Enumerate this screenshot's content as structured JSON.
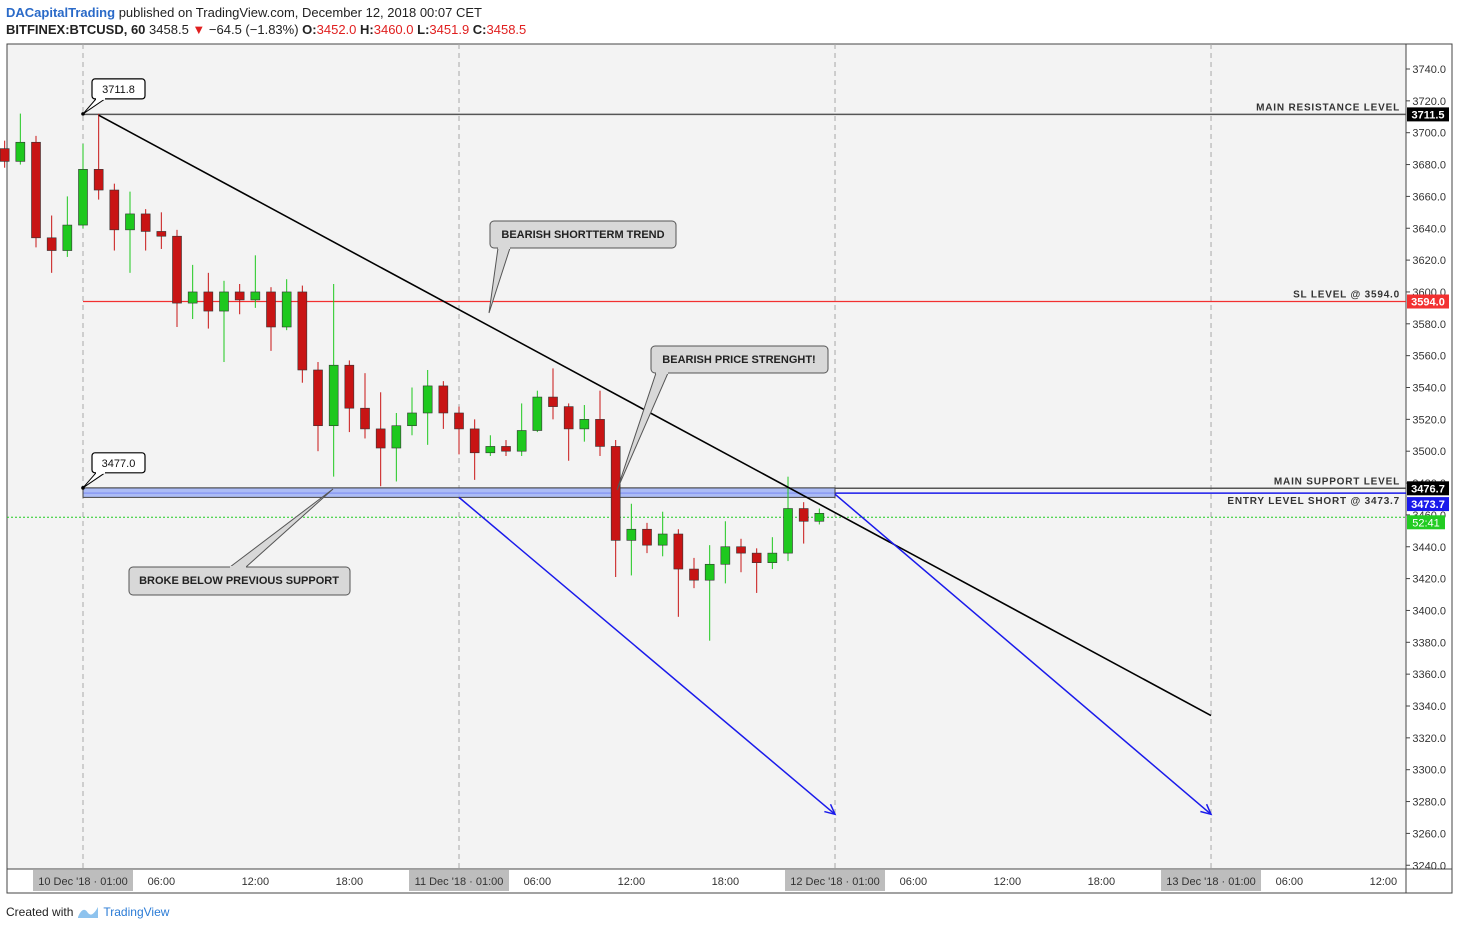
{
  "header": {
    "author": "DACapitalTrading",
    "published": "published on TradingView.com, December 12, 2018 00:07 CET",
    "symbol": "BITFINEX:BTCUSD, 60",
    "last": "3458.5",
    "change": "−64.5 (−1.83%)",
    "o_label": "O:",
    "o": "3452.0",
    "h_label": "H:",
    "h": "3460.0",
    "l_label": "L:",
    "l": "3451.9",
    "c_label": "C:",
    "c": "3458.5"
  },
  "footer": {
    "created": "Created with",
    "brand": "TradingView"
  },
  "colors": {
    "up": "#1ec81e",
    "down": "#c81414",
    "trend": "#000000",
    "projection": "#1a1aeb",
    "sl": "#f23030",
    "support_band": "#9fb2f5"
  },
  "chart_data": {
    "type": "candlestick",
    "y_ticks": [
      3240,
      3260,
      3280,
      3300,
      3320,
      3340,
      3360,
      3380,
      3400,
      3420,
      3440,
      3460,
      3480,
      3500,
      3520,
      3540,
      3560,
      3580,
      3600,
      3620,
      3640,
      3660,
      3680,
      3700,
      3720,
      3740
    ],
    "x_ticks": [
      {
        "label": "10 Dec '18 · 01:00",
        "hour": 1,
        "major": true
      },
      {
        "label": "06:00",
        "hour": 6
      },
      {
        "label": "12:00",
        "hour": 12
      },
      {
        "label": "18:00",
        "hour": 18
      },
      {
        "label": "11 Dec '18 · 01:00",
        "hour": 25,
        "major": true
      },
      {
        "label": "06:00",
        "hour": 30
      },
      {
        "label": "12:00",
        "hour": 36
      },
      {
        "label": "18:00",
        "hour": 42
      },
      {
        "label": "12 Dec '18 · 01:00",
        "hour": 49,
        "major": true
      },
      {
        "label": "06:00",
        "hour": 54
      },
      {
        "label": "12:00",
        "hour": 60
      },
      {
        "label": "18:00",
        "hour": 66
      },
      {
        "label": "13 Dec '18 · 01:00",
        "hour": 73,
        "major": true
      },
      {
        "label": "06:00",
        "hour": 78
      },
      {
        "label": "12:00",
        "hour": 84
      }
    ],
    "candles": [
      {
        "h": -4,
        "o": 3690,
        "c": 3682,
        "hi": 3695,
        "lo": 3678
      },
      {
        "h": -3,
        "o": 3682,
        "c": 3694,
        "hi": 3712,
        "lo": 3680
      },
      {
        "h": -2,
        "o": 3694,
        "c": 3634,
        "hi": 3698,
        "lo": 3628
      },
      {
        "h": -1,
        "o": 3634,
        "c": 3626,
        "hi": 3648,
        "lo": 3612
      },
      {
        "h": 0,
        "o": 3626,
        "c": 3642,
        "hi": 3660,
        "lo": 3622
      },
      {
        "h": 1,
        "o": 3642,
        "c": 3677,
        "hi": 3693,
        "lo": 3640
      },
      {
        "h": 2,
        "o": 3677,
        "c": 3664,
        "hi": 3711.8,
        "lo": 3658
      },
      {
        "h": 3,
        "o": 3664,
        "c": 3639,
        "hi": 3668,
        "lo": 3626
      },
      {
        "h": 4,
        "o": 3639,
        "c": 3649,
        "hi": 3663,
        "lo": 3612
      },
      {
        "h": 5,
        "o": 3649,
        "c": 3638,
        "hi": 3652,
        "lo": 3626
      },
      {
        "h": 6,
        "o": 3638,
        "c": 3635,
        "hi": 3650,
        "lo": 3627
      },
      {
        "h": 7,
        "o": 3635,
        "c": 3593,
        "hi": 3639,
        "lo": 3578
      },
      {
        "h": 8,
        "o": 3593,
        "c": 3600,
        "hi": 3617,
        "lo": 3583
      },
      {
        "h": 9,
        "o": 3600,
        "c": 3588,
        "hi": 3612,
        "lo": 3577
      },
      {
        "h": 10,
        "o": 3588,
        "c": 3600,
        "hi": 3607,
        "lo": 3556
      },
      {
        "h": 11,
        "o": 3600,
        "c": 3595,
        "hi": 3605,
        "lo": 3586
      },
      {
        "h": 12,
        "o": 3595,
        "c": 3600,
        "hi": 3623,
        "lo": 3590
      },
      {
        "h": 13,
        "o": 3600,
        "c": 3578,
        "hi": 3603,
        "lo": 3563
      },
      {
        "h": 14,
        "o": 3578,
        "c": 3600,
        "hi": 3608,
        "lo": 3576
      },
      {
        "h": 15,
        "o": 3600,
        "c": 3551,
        "hi": 3604,
        "lo": 3543
      },
      {
        "h": 16,
        "o": 3551,
        "c": 3516,
        "hi": 3556,
        "lo": 3500
      },
      {
        "h": 17,
        "o": 3516,
        "c": 3554,
        "hi": 3605,
        "lo": 3484
      },
      {
        "h": 18,
        "o": 3554,
        "c": 3527,
        "hi": 3557,
        "lo": 3512
      },
      {
        "h": 19,
        "o": 3527,
        "c": 3514,
        "hi": 3549,
        "lo": 3508
      },
      {
        "h": 20,
        "o": 3514,
        "c": 3502,
        "hi": 3537,
        "lo": 3478
      },
      {
        "h": 21,
        "o": 3502,
        "c": 3516,
        "hi": 3524,
        "lo": 3481
      },
      {
        "h": 22,
        "o": 3516,
        "c": 3524,
        "hi": 3540,
        "lo": 3510
      },
      {
        "h": 23,
        "o": 3524,
        "c": 3541,
        "hi": 3551,
        "lo": 3504
      },
      {
        "h": 24,
        "o": 3541,
        "c": 3524,
        "hi": 3544,
        "lo": 3514
      },
      {
        "h": 25,
        "o": 3524,
        "c": 3514,
        "hi": 3528,
        "lo": 3498
      },
      {
        "h": 26,
        "o": 3514,
        "c": 3499,
        "hi": 3520,
        "lo": 3482
      },
      {
        "h": 27,
        "o": 3499,
        "c": 3503,
        "hi": 3510,
        "lo": 3497
      },
      {
        "h": 28,
        "o": 3503,
        "c": 3500,
        "hi": 3507,
        "lo": 3497
      },
      {
        "h": 29,
        "o": 3500,
        "c": 3513,
        "hi": 3530,
        "lo": 3497
      },
      {
        "h": 30,
        "o": 3513,
        "c": 3534,
        "hi": 3538,
        "lo": 3512
      },
      {
        "h": 31,
        "o": 3534,
        "c": 3528,
        "hi": 3552,
        "lo": 3520
      },
      {
        "h": 32,
        "o": 3528,
        "c": 3514,
        "hi": 3530,
        "lo": 3494
      },
      {
        "h": 33,
        "o": 3514,
        "c": 3520,
        "hi": 3529,
        "lo": 3506
      },
      {
        "h": 34,
        "o": 3520,
        "c": 3503,
        "hi": 3538,
        "lo": 3497
      },
      {
        "h": 35,
        "o": 3503,
        "c": 3444,
        "hi": 3507,
        "lo": 3421
      },
      {
        "h": 36,
        "o": 3444,
        "c": 3451,
        "hi": 3467,
        "lo": 3422
      },
      {
        "h": 37,
        "o": 3451,
        "c": 3441,
        "hi": 3455,
        "lo": 3436
      },
      {
        "h": 38,
        "o": 3441,
        "c": 3448,
        "hi": 3462,
        "lo": 3434
      },
      {
        "h": 39,
        "o": 3448,
        "c": 3426,
        "hi": 3451,
        "lo": 3396
      },
      {
        "h": 40,
        "o": 3426,
        "c": 3419,
        "hi": 3433,
        "lo": 3414
      },
      {
        "h": 41,
        "o": 3419,
        "c": 3429,
        "hi": 3441,
        "lo": 3381
      },
      {
        "h": 42,
        "o": 3429,
        "c": 3440,
        "hi": 3456,
        "lo": 3417
      },
      {
        "h": 43,
        "o": 3440,
        "c": 3436,
        "hi": 3445,
        "lo": 3424
      },
      {
        "h": 44,
        "o": 3436,
        "c": 3430,
        "hi": 3439,
        "lo": 3411
      },
      {
        "h": 45,
        "o": 3430,
        "c": 3436,
        "hi": 3446,
        "lo": 3426
      },
      {
        "h": 46,
        "o": 3436,
        "c": 3464,
        "hi": 3484,
        "lo": 3431
      },
      {
        "h": 47,
        "o": 3464,
        "c": 3456,
        "hi": 3468,
        "lo": 3442
      },
      {
        "h": 48,
        "o": 3456,
        "c": 3461,
        "hi": 3464,
        "lo": 3454
      }
    ],
    "levels": [
      {
        "name": "main-resistance",
        "value": 3711.5,
        "label": "MAIN RESISTANCE LEVEL",
        "tag": "3711.5",
        "line_color": "#555555",
        "tag_bg": "#000000"
      },
      {
        "name": "sl",
        "value": 3594.0,
        "label": "SL LEVEL @ 3594.0",
        "tag": "3594.0",
        "line_color": "#f23030",
        "tag_bg": "#f23030"
      },
      {
        "name": "main-support",
        "value": 3476.7,
        "label": "MAIN SUPPORT LEVEL",
        "tag": "3476.7",
        "line_color": "#555555",
        "tag_bg": "#000000"
      },
      {
        "name": "entry",
        "value": 3473.7,
        "label": "ENTRY LEVEL SHORT @ 3473.7",
        "tag": "3473.7",
        "line_color": "#1a1aeb",
        "tag_bg": "#1a1aeb"
      }
    ],
    "current": {
      "value": 3458.5,
      "tag": "52:41",
      "color": "#22cc22"
    },
    "price_markers": [
      {
        "text": "3711.8",
        "hour": 1,
        "value": 3711.8
      },
      {
        "text": "3477.0",
        "hour": 1,
        "value": 3477.0
      }
    ],
    "support_band": {
      "start_hour": 1,
      "end_hour": 49,
      "top": 3477.0,
      "bottom": 3471.0
    },
    "trend_line": {
      "start": {
        "hour": 2,
        "value": 3711
      },
      "end": {
        "hour": 73,
        "value": 3334
      }
    },
    "projections": [
      {
        "start": {
          "hour": 25,
          "value": 3471
        },
        "end": {
          "hour": 49,
          "value": 3272
        }
      },
      {
        "start": {
          "hour": 49,
          "value": 3473
        },
        "end": {
          "hour": 73,
          "value": 3272
        }
      }
    ],
    "callouts": [
      {
        "name": "bearish-shortterm-trend",
        "text": "BEARISH SHORTTERM TREND"
      },
      {
        "name": "bearish-price-strength",
        "text": "BEARISH PRICE STRENGHT!"
      },
      {
        "name": "broke-below-support",
        "text": "BROKE BELOW PREVIOUS SUPPORT"
      }
    ]
  }
}
